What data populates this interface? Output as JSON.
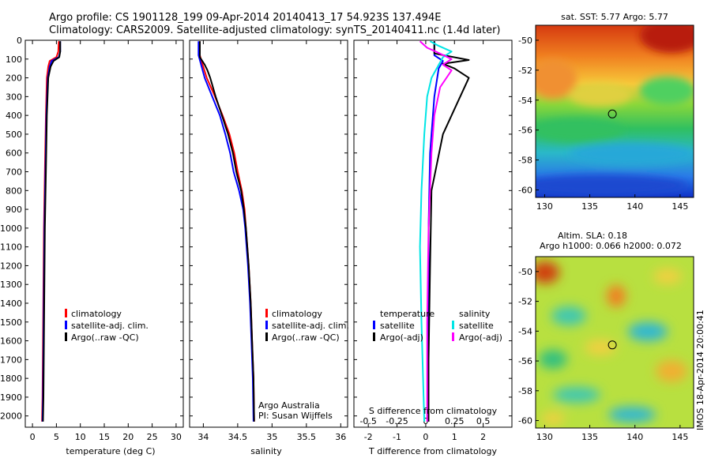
{
  "header": {
    "title_line1": "Argo profile: CS 1901128_199 09-Apr-2014 20140413_17 54.923S 137.494E",
    "title_line2": "Climatology: CARS2009. Satellite-adjusted climatology: synTS_20140411.nc (1.4d later)"
  },
  "colors": {
    "climatology": "#ff0000",
    "satellite": "#0000ff",
    "argo": "#000000",
    "salinity_satellite": "#00e5e5",
    "salinity_argo": "#ff00ff"
  },
  "chart_data": [
    {
      "type": "line",
      "name": "temperature-profile",
      "xlabel": "temperature (deg C)",
      "xlim": [
        -1.5,
        31.5
      ],
      "ylim": [
        2060,
        0
      ],
      "xticks": [
        0,
        5,
        10,
        15,
        20,
        25,
        30
      ],
      "yticks": [
        0,
        100,
        200,
        300,
        400,
        500,
        600,
        700,
        800,
        900,
        1000,
        1100,
        1200,
        1300,
        1400,
        1500,
        1600,
        1700,
        1800,
        1900,
        2000
      ],
      "legend": [
        "climatology",
        "satellite-adj. clim.",
        "Argo(..raw -QC)"
      ],
      "series": [
        {
          "name": "climatology",
          "color": "red",
          "points": [
            [
              5.5,
              5
            ],
            [
              5.4,
              60
            ],
            [
              5.0,
              90
            ],
            [
              3.6,
              110
            ],
            [
              3.3,
              140
            ],
            [
              3.0,
              200
            ],
            [
              2.8,
              400
            ],
            [
              2.6,
              700
            ],
            [
              2.4,
              1000
            ],
            [
              2.3,
              1300
            ],
            [
              2.2,
              1600
            ],
            [
              2.1,
              1900
            ],
            [
              2.0,
              2030
            ]
          ]
        },
        {
          "name": "satellite-adj. clim.",
          "color": "blue",
          "points": [
            [
              5.8,
              5
            ],
            [
              5.8,
              60
            ],
            [
              5.5,
              90
            ],
            [
              4.0,
              110
            ],
            [
              3.6,
              140
            ],
            [
              3.2,
              200
            ],
            [
              2.9,
              400
            ],
            [
              2.7,
              700
            ],
            [
              2.5,
              1000
            ],
            [
              2.4,
              1300
            ],
            [
              2.3,
              1600
            ],
            [
              2.2,
              1900
            ],
            [
              2.1,
              2030
            ]
          ]
        },
        {
          "name": "Argo(..raw -QC)",
          "color": "black",
          "points": [
            [
              5.8,
              5
            ],
            [
              5.8,
              60
            ],
            [
              5.6,
              90
            ],
            [
              4.4,
              110
            ],
            [
              3.8,
              140
            ],
            [
              3.3,
              200
            ],
            [
              3.0,
              400
            ],
            [
              2.8,
              700
            ],
            [
              2.6,
              1000
            ],
            [
              2.5,
              1300
            ],
            [
              2.4,
              1600
            ],
            [
              2.3,
              1900
            ],
            [
              2.2,
              2030
            ]
          ]
        }
      ]
    },
    {
      "type": "line",
      "name": "salinity-profile",
      "xlabel": "salinity",
      "xlim": [
        33.8,
        36.1
      ],
      "ylim": [
        2060,
        0
      ],
      "xticks": [
        34,
        34.5,
        35,
        35.5,
        36
      ],
      "legend": [
        "climatology",
        "satellite-adj. clim.",
        "Argo(..raw -QC)"
      ],
      "annotation": [
        "Argo Australia",
        "PI: Susan Wijffels"
      ],
      "series": [
        {
          "name": "climatology",
          "color": "red",
          "points": [
            [
              33.95,
              5
            ],
            [
              33.95,
              80
            ],
            [
              33.98,
              120
            ],
            [
              34.05,
              200
            ],
            [
              34.17,
              300
            ],
            [
              34.28,
              400
            ],
            [
              34.38,
              500
            ],
            [
              34.45,
              600
            ],
            [
              34.5,
              700
            ],
            [
              34.56,
              800
            ],
            [
              34.6,
              900
            ],
            [
              34.62,
              1000
            ],
            [
              34.66,
              1200
            ],
            [
              34.69,
              1400
            ],
            [
              34.71,
              1600
            ],
            [
              34.73,
              1800
            ],
            [
              34.74,
              2030
            ]
          ]
        },
        {
          "name": "satellite-adj. clim.",
          "color": "blue",
          "points": [
            [
              33.93,
              5
            ],
            [
              33.93,
              80
            ],
            [
              33.96,
              120
            ],
            [
              34.02,
              200
            ],
            [
              34.13,
              300
            ],
            [
              34.24,
              400
            ],
            [
              34.32,
              500
            ],
            [
              34.39,
              600
            ],
            [
              34.44,
              700
            ],
            [
              34.52,
              800
            ],
            [
              34.58,
              900
            ],
            [
              34.61,
              1000
            ],
            [
              34.65,
              1200
            ],
            [
              34.68,
              1400
            ],
            [
              34.7,
              1600
            ],
            [
              34.72,
              1800
            ],
            [
              34.73,
              2030
            ]
          ]
        },
        {
          "name": "Argo(..raw -QC)",
          "color": "black",
          "points": [
            [
              33.95,
              5
            ],
            [
              33.95,
              90
            ],
            [
              34.02,
              130
            ],
            [
              34.06,
              160
            ],
            [
              34.1,
              200
            ],
            [
              34.18,
              300
            ],
            [
              34.27,
              400
            ],
            [
              34.36,
              500
            ],
            [
              34.43,
              600
            ],
            [
              34.48,
              700
            ],
            [
              34.55,
              800
            ],
            [
              34.59,
              900
            ],
            [
              34.62,
              1000
            ],
            [
              34.66,
              1200
            ],
            [
              34.69,
              1400
            ],
            [
              34.71,
              1600
            ],
            [
              34.73,
              1800
            ],
            [
              34.74,
              2030
            ]
          ]
        }
      ]
    },
    {
      "type": "line",
      "name": "difference-profile",
      "xlabel": "T difference from climatology",
      "xlabel_top": "S difference from climatology",
      "xlim": [
        -2.5,
        3.0
      ],
      "ylim": [
        2060,
        0
      ],
      "xticks": [
        -2,
        -1,
        0,
        1,
        2
      ],
      "xticks_top": [
        -0.5,
        -0.25,
        0,
        0.25,
        0.5
      ],
      "legend_temperature_title": "temperature",
      "legend_salinity_title": "salinity",
      "legend": [
        "satellite",
        "Argo(-adj)",
        "satellite",
        "Argo(-adj)"
      ],
      "series": [
        {
          "name": "temperature satellite",
          "color": "blue",
          "points": [
            [
              0.3,
              5
            ],
            [
              0.3,
              80
            ],
            [
              0.6,
              110
            ],
            [
              0.45,
              150
            ],
            [
              0.3,
              300
            ],
            [
              0.15,
              600
            ],
            [
              0.1,
              1000
            ],
            [
              0.1,
              1500
            ],
            [
              0.1,
              2030
            ]
          ]
        },
        {
          "name": "temperature Argo(-adj)",
          "color": "black",
          "points": [
            [
              0.3,
              5
            ],
            [
              0.3,
              70
            ],
            [
              1.5,
              105
            ],
            [
              0.6,
              125
            ],
            [
              1.0,
              150
            ],
            [
              1.5,
              200
            ],
            [
              1.2,
              300
            ],
            [
              0.6,
              500
            ],
            [
              0.2,
              800
            ],
            [
              0.15,
              1200
            ],
            [
              0.1,
              1700
            ],
            [
              0.1,
              2030
            ]
          ]
        },
        {
          "name": "salinity satellite",
          "color": "cyan",
          "points": [
            [
              0.15,
              5
            ],
            [
              0.45,
              30
            ],
            [
              0.9,
              60
            ],
            [
              0.6,
              90
            ],
            [
              0.2,
              200
            ],
            [
              0.05,
              300
            ],
            [
              -0.05,
              500
            ],
            [
              -0.15,
              800
            ],
            [
              -0.2,
              1100
            ],
            [
              -0.15,
              1500
            ],
            [
              -0.05,
              2030
            ]
          ]
        },
        {
          "name": "salinity Argo(-adj)",
          "color": "magenta",
          "points": [
            [
              -0.2,
              5
            ],
            [
              0.05,
              40
            ],
            [
              0.35,
              60
            ],
            [
              0.9,
              100
            ],
            [
              0.6,
              130
            ],
            [
              0.9,
              160
            ],
            [
              0.5,
              250
            ],
            [
              0.3,
              400
            ],
            [
              0.2,
              600
            ],
            [
              0.1,
              1000
            ],
            [
              0.05,
              1500
            ],
            [
              0.05,
              2030
            ]
          ]
        }
      ]
    },
    {
      "type": "heatmap",
      "name": "sst-map",
      "title": "sat. SST: 5.77 Argo: 5.77",
      "xlim": [
        129,
        146.5
      ],
      "ylim": [
        -60.5,
        -49
      ],
      "xticks": [
        130,
        135,
        140,
        145
      ],
      "yticks": [
        -50,
        -52,
        -54,
        -56,
        -58,
        -60
      ],
      "marker": [
        137.494,
        -54.923
      ]
    },
    {
      "type": "heatmap",
      "name": "sla-map",
      "title": "Altim. SLA: 0.18",
      "subtitle": "Argo h1000: 0.066 h2000: 0.072",
      "xlim": [
        129,
        146.5
      ],
      "ylim": [
        -60.5,
        -49
      ],
      "xticks": [
        130,
        135,
        140,
        145
      ],
      "yticks": [
        -50,
        -52,
        -54,
        -56,
        -58,
        -60
      ],
      "marker": [
        137.494,
        -54.923
      ]
    }
  ],
  "footer": {
    "stamp": "IMOS 18-Apr-2014 20:00:41"
  }
}
